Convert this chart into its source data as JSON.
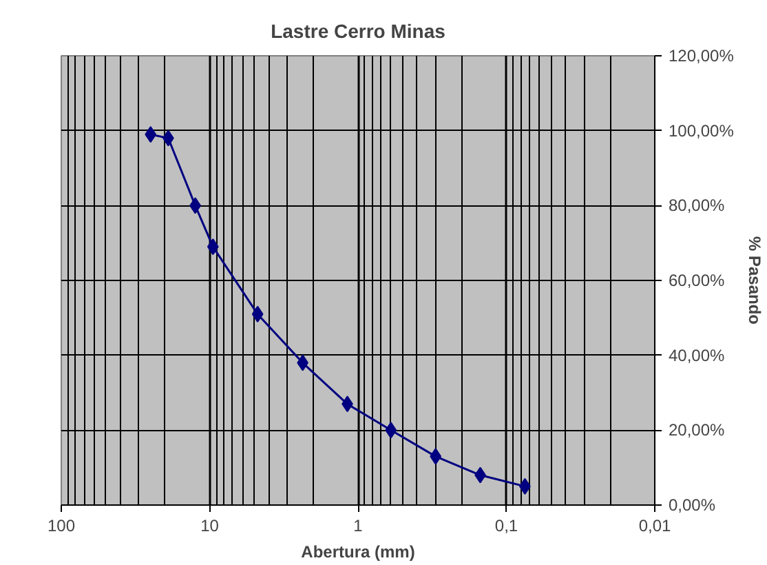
{
  "chart_data": {
    "type": "line",
    "title": "Lastre Cerro Minas",
    "xlabel": "Abertura (mm)",
    "ylabel": "% Pasando",
    "x": [
      25,
      19,
      12.5,
      9.5,
      4.75,
      2.36,
      1.18,
      0.6,
      0.3,
      0.15,
      0.075
    ],
    "series": [
      {
        "color": "#000080",
        "values": [
          99,
          98,
          80,
          69,
          51,
          38,
          27,
          20,
          13,
          8,
          5
        ]
      }
    ],
    "log": "x",
    "xlim": [
      100,
      0.01
    ],
    "xticks": [
      100,
      10,
      1,
      {
        "value": 0.1,
        "label": "0,1"
      },
      {
        "value": 0.01,
        "label": "0,01"
      }
    ],
    "ylim": [
      0,
      120
    ],
    "yticks": [
      {
        "value": 0,
        "label": "0,00%"
      },
      {
        "value": 20,
        "label": "20,00%"
      },
      {
        "value": 40,
        "label": "40,00%"
      },
      {
        "value": 60,
        "label": "60,00%"
      },
      {
        "value": 80,
        "label": "80,00%"
      },
      {
        "value": 100,
        "label": "100,00%"
      },
      {
        "value": 120,
        "label": "120,00%"
      }
    ],
    "grid": true,
    "marker": "diamond",
    "line_style": "solid"
  }
}
